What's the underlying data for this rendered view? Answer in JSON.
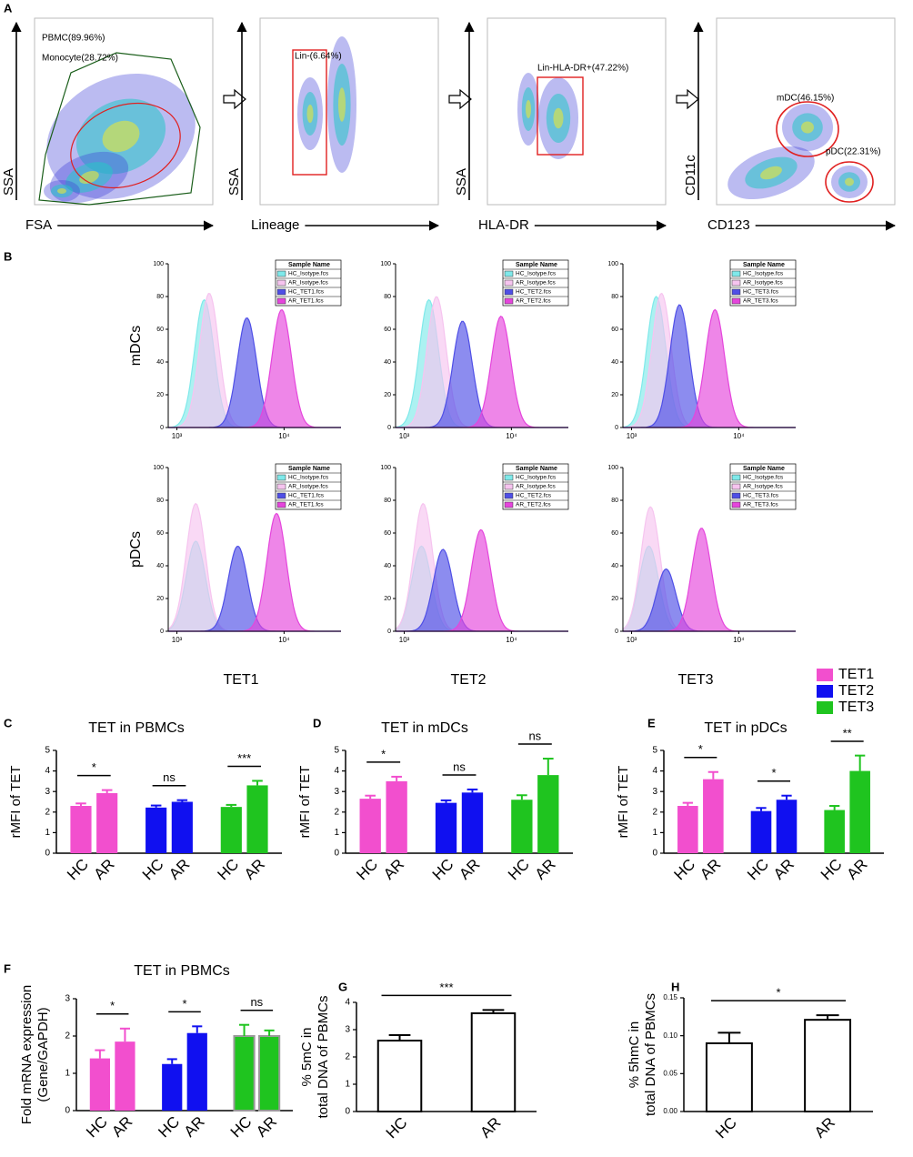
{
  "flow": {
    "panel": "A",
    "plots": [
      {
        "x_label": "FSA",
        "y_label": "SSA",
        "gates": [
          "PBMC(89.96%)",
          "Monocyte(28.72%)"
        ]
      },
      {
        "x_label": "Lineage",
        "y_label": "SSA",
        "gates": [
          "Lin-(6.64%)"
        ]
      },
      {
        "x_label": "HLA-DR",
        "y_label": "SSA",
        "gates": [
          "Lin-HLA-DR+(47.22%)"
        ]
      },
      {
        "x_label": "CD123",
        "y_label": "CD11c",
        "gates": [
          "mDC(46.15%)",
          "pDC(22.31%)"
        ]
      }
    ]
  },
  "histograms": {
    "panel": "B",
    "type": "histogram",
    "xscale": "log",
    "row_labels": [
      "mDCs",
      "pDCs"
    ],
    "column_labels": [
      "TET1",
      "TET2",
      "TET3"
    ],
    "legend_title": "Sample Name",
    "xlim": [
      830,
      34000
    ],
    "xticks": [
      {
        "value": 1000,
        "label": "10³"
      },
      {
        "value": 10000,
        "label": "10⁴"
      }
    ],
    "ylim": [
      0,
      100
    ],
    "yticks": [
      0,
      20,
      40,
      60,
      80,
      100
    ],
    "panels": [
      [
        {
          "series": [
            {
              "name": "HC_Isotype.fcs",
              "color": "#7fe9ea",
              "peak": 1800,
              "height": 78
            },
            {
              "name": "AR_Isotype.fcs",
              "color": "#f6c4ef",
              "peak": 2000,
              "height": 82
            },
            {
              "name": "HC_TET1.fcs",
              "color": "#4f4fe6",
              "peak": 4500,
              "height": 67
            },
            {
              "name": "AR_TET1.fcs",
              "color": "#e545dc",
              "peak": 9500,
              "height": 72
            }
          ]
        },
        {
          "series": [
            {
              "name": "HC_Isotype.fcs",
              "color": "#7fe9ea",
              "peak": 1700,
              "height": 78
            },
            {
              "name": "AR_Isotype.fcs",
              "color": "#f6c4ef",
              "peak": 2000,
              "height": 80
            },
            {
              "name": "HC_TET2.fcs",
              "color": "#4f4fe6",
              "peak": 3500,
              "height": 65
            },
            {
              "name": "AR_TET2.fcs",
              "color": "#e545dc",
              "peak": 8000,
              "height": 68
            }
          ]
        },
        {
          "series": [
            {
              "name": "HC_Isotype.fcs",
              "color": "#7fe9ea",
              "peak": 1700,
              "height": 80
            },
            {
              "name": "AR_Isotype.fcs",
              "color": "#f6c4ef",
              "peak": 1900,
              "height": 82
            },
            {
              "name": "HC_TET3.fcs",
              "color": "#4f4fe6",
              "peak": 2800,
              "height": 75
            },
            {
              "name": "AR_TET3.fcs",
              "color": "#e545dc",
              "peak": 6000,
              "height": 72
            }
          ]
        }
      ],
      [
        {
          "series": [
            {
              "name": "HC_Isotype.fcs",
              "color": "#7fe9ea",
              "peak": 1500,
              "height": 55
            },
            {
              "name": "AR_Isotype.fcs",
              "color": "#f6c4ef",
              "peak": 1500,
              "height": 78
            },
            {
              "name": "HC_TET1.fcs",
              "color": "#4f4fe6",
              "peak": 3700,
              "height": 52
            },
            {
              "name": "AR_TET1.fcs",
              "color": "#e545dc",
              "peak": 8500,
              "height": 72
            }
          ]
        },
        {
          "series": [
            {
              "name": "HC_Isotype.fcs",
              "color": "#7fe9ea",
              "peak": 1450,
              "height": 52
            },
            {
              "name": "AR_Isotype.fcs",
              "color": "#f6c4ef",
              "peak": 1500,
              "height": 78
            },
            {
              "name": "HC_TET2.fcs",
              "color": "#4f4fe6",
              "peak": 2300,
              "height": 50
            },
            {
              "name": "AR_TET2.fcs",
              "color": "#e545dc",
              "peak": 5200,
              "height": 62
            }
          ]
        },
        {
          "series": [
            {
              "name": "HC_Isotype.fcs",
              "color": "#7fe9ea",
              "peak": 1450,
              "height": 52
            },
            {
              "name": "AR_Isotype.fcs",
              "color": "#f6c4ef",
              "peak": 1500,
              "height": 76
            },
            {
              "name": "HC_TET3.fcs",
              "color": "#4f4fe6",
              "peak": 2100,
              "height": 38
            },
            {
              "name": "AR_TET3.fcs",
              "color": "#e545dc",
              "peak": 4500,
              "height": 63
            }
          ]
        }
      ]
    ]
  },
  "chart_data": [
    {
      "type": "bar",
      "panel": "C",
      "title": "TET in PBMCs",
      "ylabel": [
        "rMFI of TET"
      ],
      "categories": [
        "HC",
        "AR"
      ],
      "ylim": [
        0,
        5
      ],
      "yticks": [
        0,
        1,
        2,
        3,
        4,
        5
      ],
      "series": [
        {
          "name": "TET1",
          "color": "#f24fce",
          "values": [
            2.3,
            2.92
          ],
          "errors": [
            0.12,
            0.15
          ]
        },
        {
          "name": "TET2",
          "color": "#1010f0",
          "values": [
            2.22,
            2.5
          ],
          "errors": [
            0.1,
            0.08
          ]
        },
        {
          "name": "TET3",
          "color": "#1fc41f",
          "values": [
            2.25,
            3.3
          ],
          "errors": [
            0.1,
            0.22
          ]
        }
      ],
      "annotations": [
        "*",
        "ns",
        "***"
      ]
    },
    {
      "type": "bar",
      "panel": "D",
      "title": "TET in mDCs",
      "ylabel": [
        "rMFI of TET"
      ],
      "categories": [
        "HC",
        "AR"
      ],
      "ylim": [
        0,
        5
      ],
      "yticks": [
        0,
        1,
        2,
        3,
        4,
        5
      ],
      "series": [
        {
          "color": "#f24fce",
          "values": [
            2.65,
            3.5
          ],
          "errors": [
            0.15,
            0.22
          ]
        },
        {
          "color": "#1010f0",
          "values": [
            2.45,
            2.95
          ],
          "errors": [
            0.12,
            0.15
          ]
        },
        {
          "color": "#1fc41f",
          "values": [
            2.6,
            3.8
          ],
          "errors": [
            0.22,
            0.8
          ]
        }
      ],
      "annotations": [
        "*",
        "ns",
        "ns"
      ]
    },
    {
      "type": "bar",
      "panel": "E",
      "title": "TET in pDCs",
      "ylabel": [
        "rMFI of TET"
      ],
      "categories": [
        "HC",
        "AR"
      ],
      "ylim": [
        0,
        5
      ],
      "yticks": [
        0,
        1,
        2,
        3,
        4,
        5
      ],
      "series": [
        {
          "color": "#f24fce",
          "values": [
            2.3,
            3.6
          ],
          "errors": [
            0.15,
            0.35
          ]
        },
        {
          "color": "#1010f0",
          "values": [
            2.05,
            2.6
          ],
          "errors": [
            0.15,
            0.2
          ]
        },
        {
          "color": "#1fc41f",
          "values": [
            2.1,
            4.0
          ],
          "errors": [
            0.2,
            0.75
          ]
        }
      ],
      "annotations": [
        "*",
        "*",
        "**"
      ]
    },
    {
      "type": "bar",
      "panel": "F",
      "title": "TET in PBMCs",
      "ylabel": [
        "Fold mRNA expression",
        "(Gene/GAPDH)"
      ],
      "categories": [
        "HC",
        "AR"
      ],
      "ylim": [
        0,
        3
      ],
      "yticks": [
        0,
        1,
        2,
        3
      ],
      "series": [
        {
          "color": "#f24fce",
          "values": [
            1.4,
            1.85
          ],
          "errors": [
            0.22,
            0.35
          ]
        },
        {
          "color": "#1010f0",
          "values": [
            1.25,
            2.08
          ],
          "errors": [
            0.13,
            0.18
          ]
        },
        {
          "color": "#1fc41f",
          "edgecolor": "#9a9a9a",
          "values": [
            2.0,
            2.0
          ],
          "errors": [
            0.3,
            0.15
          ]
        }
      ],
      "annotations": [
        "*",
        "*",
        "ns"
      ]
    },
    {
      "type": "bar",
      "panel": "G",
      "ylabel": [
        "% 5mC in",
        "total DNA of PBMCs"
      ],
      "categories": [
        "HC",
        "AR"
      ],
      "ylim": [
        0,
        4
      ],
      "yticks": [
        0,
        1,
        2,
        3,
        4
      ],
      "series": [
        {
          "color": "#ffffff",
          "edgecolor": "#000000",
          "values": [
            2.6,
            3.6
          ],
          "errors": [
            0.2,
            0.12
          ]
        }
      ],
      "annotations": [
        "***"
      ]
    },
    {
      "type": "bar",
      "panel": "H",
      "ylabel": [
        "% 5hmC in",
        "total DNA of PBMCs"
      ],
      "categories": [
        "HC",
        "AR"
      ],
      "ylim": [
        0,
        0.15
      ],
      "yticks": [
        {
          "value": 0,
          "label": "0.00"
        },
        {
          "value": 0.05,
          "label": "0.05"
        },
        {
          "value": 0.1,
          "label": "0.10"
        },
        {
          "value": 0.15,
          "label": "0.15"
        }
      ],
      "series": [
        {
          "color": "#ffffff",
          "edgecolor": "#000000",
          "values": [
            0.09,
            0.121
          ],
          "errors": [
            0.014,
            0.006
          ]
        }
      ],
      "annotations": [
        "*"
      ]
    }
  ]
}
